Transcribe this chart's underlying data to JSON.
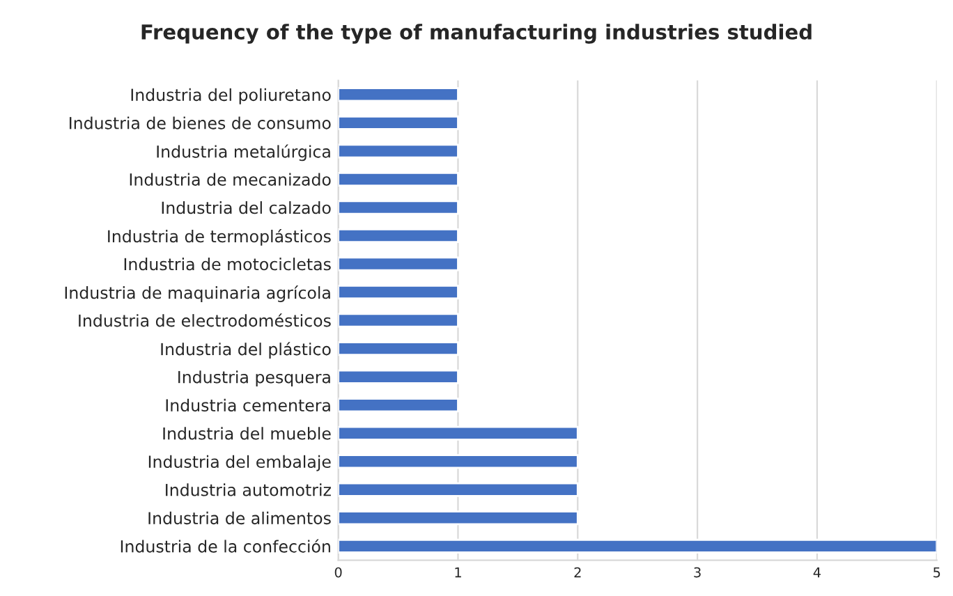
{
  "chart_data": {
    "type": "bar",
    "orientation": "horizontal",
    "title": "Frequency of the type of manufacturing industries studied",
    "categories": [
      "Industria del poliuretano",
      "Industria de bienes de consumo",
      "Industria metalúrgica",
      "Industria de mecanizado",
      "Industria del calzado",
      "Industria de termoplásticos",
      "Industria de motocicletas",
      "Industria de maquinaria agrícola",
      "Industria de electrodomésticos",
      "Industria del plástico",
      "Industria pesquera",
      "Industria cementera",
      "Industria del mueble",
      "Industria del embalaje",
      "Industria automotriz",
      "Industria de alimentos",
      "Industria de la confección"
    ],
    "values": [
      1,
      1,
      1,
      1,
      1,
      1,
      1,
      1,
      1,
      1,
      1,
      1,
      2,
      2,
      2,
      2,
      5
    ],
    "color": "#4472c4",
    "xlim": [
      0,
      5
    ],
    "xticks": [
      0,
      1,
      2,
      3,
      4,
      5
    ],
    "grid": "x",
    "legend": false
  }
}
